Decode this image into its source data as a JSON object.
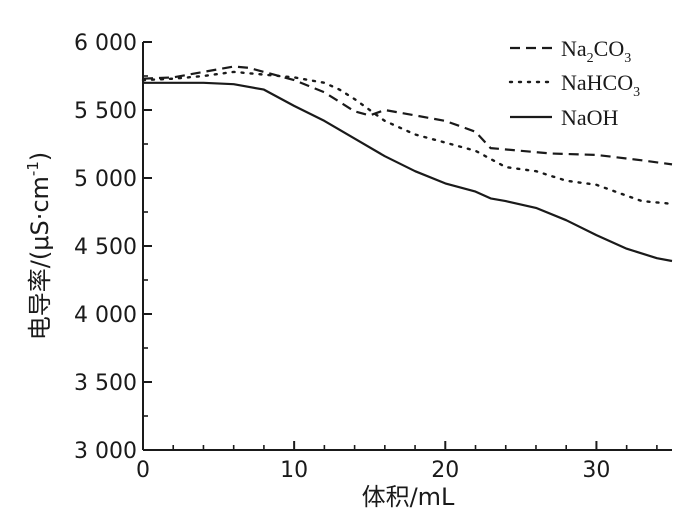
{
  "chart_data": {
    "type": "line",
    "xlabel": "体积/mL",
    "ylabel": "电导率/(μS·cm",
    "ylabel_sup": "-1",
    "ylabel_close": ")",
    "xlim": [
      0,
      35
    ],
    "ylim": [
      3000,
      6000
    ],
    "x_ticks": [
      0,
      10,
      20,
      30
    ],
    "x_tick_labels": [
      "0",
      "10",
      "20",
      "30"
    ],
    "y_ticks": [
      3000,
      3500,
      4000,
      4500,
      5000,
      5500,
      6000
    ],
    "y_tick_labels": [
      "3 000",
      "3 500",
      "4 000",
      "4 500",
      "5 000",
      "5 500",
      "6 000"
    ],
    "grid": false,
    "legend_position": "top-right",
    "series": [
      {
        "name": "Na2CO3",
        "legend_base": "Na",
        "legend_sub1": "2",
        "legend_mid": "CO",
        "legend_sub2": "3",
        "dash": "dashed",
        "x": [
          0,
          2,
          4,
          6,
          7,
          8,
          10,
          12,
          14,
          15,
          16,
          18,
          20,
          21,
          22,
          23,
          25,
          27,
          30,
          33,
          35
        ],
        "y": [
          5730,
          5740,
          5780,
          5820,
          5810,
          5780,
          5720,
          5630,
          5490,
          5460,
          5500,
          5460,
          5420,
          5380,
          5340,
          5220,
          5200,
          5180,
          5170,
          5130,
          5100
        ]
      },
      {
        "name": "NaHCO3",
        "legend_base": "NaHCO",
        "legend_sub1": "",
        "legend_mid": "",
        "legend_sub2": "3",
        "dash": "dotted",
        "x": [
          0,
          2,
          4,
          6,
          8,
          10,
          12,
          13,
          14,
          16,
          18,
          20,
          22,
          24,
          26,
          28,
          30,
          32,
          33,
          35
        ],
        "y": [
          5720,
          5730,
          5750,
          5780,
          5760,
          5740,
          5700,
          5650,
          5580,
          5420,
          5320,
          5260,
          5200,
          5080,
          5050,
          4980,
          4950,
          4870,
          4830,
          4810
        ]
      },
      {
        "name": "NaOH",
        "legend_base": "NaOH",
        "legend_sub1": "",
        "legend_mid": "",
        "legend_sub2": "",
        "dash": "solid",
        "x": [
          0,
          2,
          4,
          6,
          8,
          10,
          12,
          14,
          16,
          18,
          20,
          22,
          23,
          24,
          26,
          28,
          30,
          32,
          34,
          35
        ],
        "y": [
          5700,
          5700,
          5700,
          5690,
          5650,
          5530,
          5420,
          5290,
          5160,
          5050,
          4960,
          4900,
          4850,
          4830,
          4780,
          4690,
          4580,
          4480,
          4410,
          4390
        ]
      }
    ]
  }
}
